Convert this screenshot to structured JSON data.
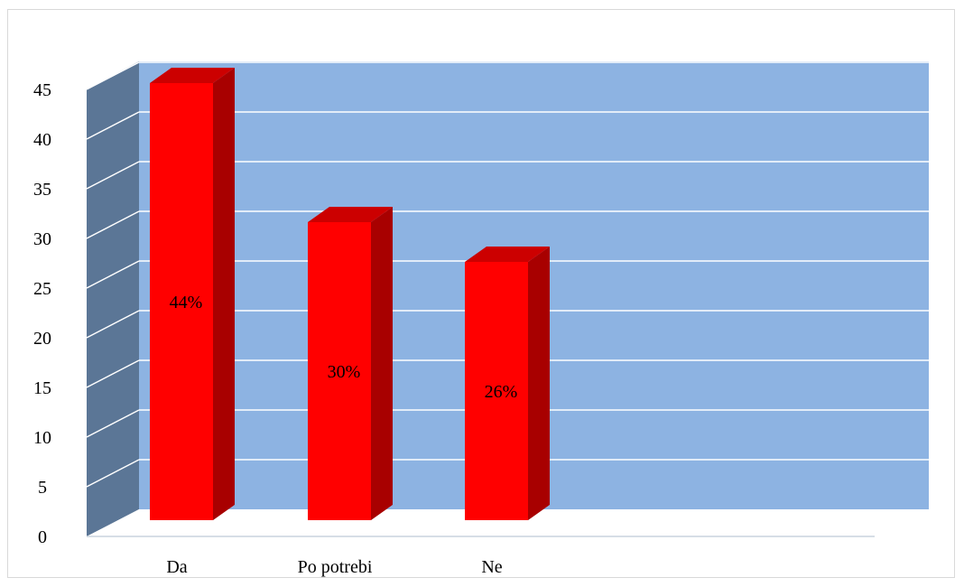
{
  "chart_data": {
    "type": "bar",
    "style": "3d-column",
    "categories": [
      "Da",
      "Po potrebi",
      "Ne"
    ],
    "values": [
      44,
      30,
      26
    ],
    "data_labels": [
      "44%",
      "30%",
      "26%"
    ],
    "title": "",
    "xlabel": "",
    "ylabel": "",
    "ylim": [
      0,
      45
    ],
    "yticks": [
      "0",
      "5",
      "10",
      "15",
      "20",
      "25",
      "30",
      "35",
      "40",
      "45"
    ],
    "grid": true,
    "legend": "none",
    "colors": {
      "bar_front": "#ff0000",
      "bar_side": "#a80000",
      "bar_top": "#cc0000",
      "back_wall": "#8db3e2",
      "side_wall": "#5b7696",
      "floor": "#ffffff",
      "gridline": "#ffffff"
    }
  }
}
